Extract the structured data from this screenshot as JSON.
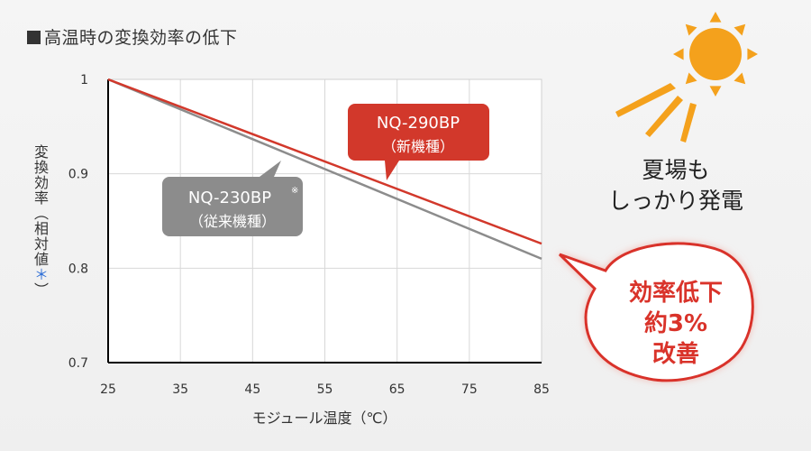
{
  "title": "高温時の変換効率の低下",
  "ylabel_main": "変換効率（相対値",
  "ylabel_mark": "＊",
  "ylabel_end": "）",
  "xlabel": "モジュール温度（℃）",
  "message": [
    "夏場も",
    "しっかり発電"
  ],
  "burst": [
    "効率低下",
    "約3%",
    "改善"
  ],
  "colors": {
    "new": "#d2382b",
    "old": "#8c8c8c",
    "accent": "#d9332a",
    "sun": "#f4a11c"
  },
  "chart_data": {
    "type": "line",
    "x": [
      25,
      85
    ],
    "xticks": [
      "25",
      "35",
      "45",
      "55",
      "65",
      "75",
      "85"
    ],
    "yticks": [
      "1",
      "0.9",
      "0.8",
      "0.7"
    ],
    "xlim": [
      25,
      85
    ],
    "ylim": [
      0.7,
      1.0
    ],
    "grid": true,
    "series": [
      {
        "name": "NQ-290BP",
        "sub": "（新機種）",
        "values": [
          1.0,
          0.826
        ]
      },
      {
        "name": "NQ-230BP",
        "mark": "※",
        "sub": "（従来機種）",
        "values": [
          1.0,
          0.81
        ]
      }
    ]
  }
}
